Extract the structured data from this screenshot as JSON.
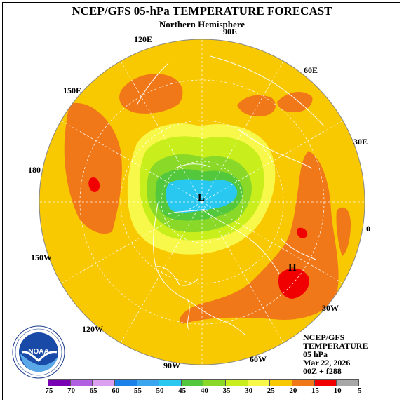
{
  "header": {
    "title": "NCEP/GFS 05-hPa TEMPERATURE FORECAST",
    "subtitle": "Northern Hemisphere"
  },
  "longitude_labels": [
    "90E",
    "120E",
    "60E",
    "150E",
    "30E",
    "180",
    "0",
    "150W",
    "30W",
    "120W",
    "90W",
    "60W"
  ],
  "extremes": {
    "low": "L",
    "high": "H"
  },
  "info": {
    "model": "NCEP/GFS",
    "field": "TEMPERATURE",
    "level": "05 hPa",
    "date": "Mar 22, 2026",
    "run": "00Z + f288"
  },
  "colorbar": {
    "labels": [
      "-75",
      "-70",
      "-65",
      "-60",
      "-55",
      "-50",
      "-45",
      "-40",
      "-35",
      "-30",
      "-25",
      "-20",
      "-15",
      "-10",
      "-5"
    ],
    "colors": [
      "#7a00b4",
      "#b060e0",
      "#dca0f0",
      "#1a82e8",
      "#3aa6f0",
      "#28c8f0",
      "#54c83c",
      "#8ad828",
      "#c8ee1c",
      "#f8f84a",
      "#f8c800",
      "#f07818",
      "#f00000",
      "#a8a8a8",
      "#808080"
    ]
  },
  "colors": {
    "ocean_warm": "#f8c800",
    "warm_core": "#f07818",
    "hot_core": "#f00000",
    "yellow_ring": "#f8f84a",
    "lime": "#c8ee1c",
    "green": "#8ad828",
    "mid_green": "#54c83c",
    "cold_core": "#28c8f0"
  }
}
